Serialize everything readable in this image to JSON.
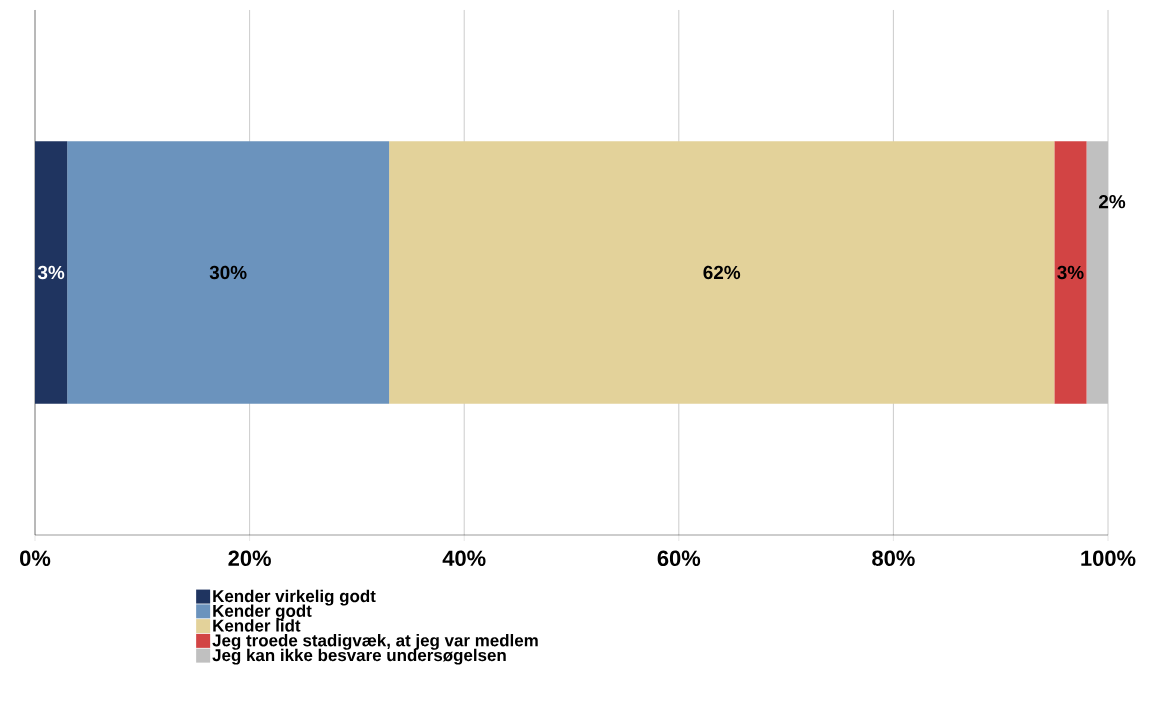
{
  "chart_data": {
    "type": "bar",
    "orientation": "horizontal",
    "stacked": true,
    "categories": [
      null
    ],
    "series": [
      {
        "name": "Kender virkelig godt",
        "color": "#1f3460",
        "values": [
          3
        ],
        "value_labels": [
          "3%"
        ]
      },
      {
        "name": "Kender godt",
        "color": "#6b93bd",
        "values": [
          30
        ],
        "value_labels": [
          "30%"
        ]
      },
      {
        "name": "Kender lidt",
        "color": "#e3d29a",
        "values": [
          62
        ],
        "value_labels": [
          "62%"
        ]
      },
      {
        "name": "Jeg troede stadigvæk, at jeg var medlem",
        "color": "#d24444",
        "values": [
          3
        ],
        "value_labels": [
          "3%"
        ]
      },
      {
        "name": "Jeg kan ikke besvare undersøgelsen",
        "color": "#c0c0c0",
        "values": [
          2
        ],
        "value_labels": [
          "2%"
        ]
      }
    ],
    "xlim": [
      0,
      100
    ],
    "xticks": [
      {
        "value": 0,
        "label": "0%"
      },
      {
        "value": 20,
        "label": "20%"
      },
      {
        "value": 40,
        "label": "40%"
      },
      {
        "value": 60,
        "label": "60%"
      },
      {
        "value": 80,
        "label": "80%"
      },
      {
        "value": 100,
        "label": "100%"
      }
    ],
    "grid": "x",
    "legend": "bottom"
  }
}
